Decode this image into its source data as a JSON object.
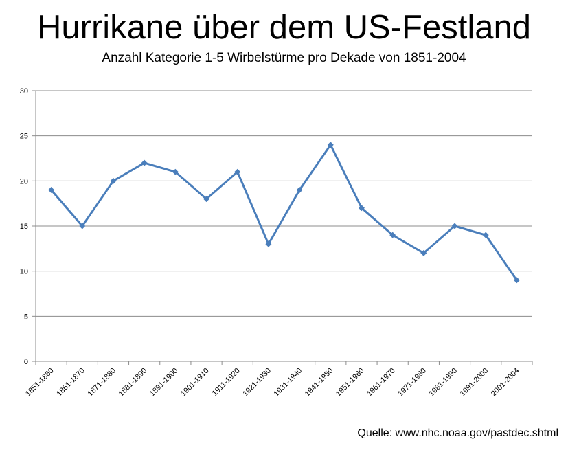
{
  "title": "Hurrikane über dem US-Festland",
  "subtitle": "Anzahl Kategorie 1-5 Wirbelstürme pro Dekade von 1851-2004",
  "source": "Quelle: www.nhc.noaa.gov/pastdec.shtml",
  "chart_data": {
    "type": "line",
    "title": "Hurrikane über dem US-Festland",
    "subtitle": "Anzahl Kategorie 1-5 Wirbelstürme pro Dekade von 1851-2004",
    "categories": [
      "1851-1860",
      "1861-1870",
      "1871-1880",
      "1881-1890",
      "1891-1900",
      "1901-1910",
      "1911-1920",
      "1921-1930",
      "1931-1940",
      "1941-1950",
      "1951-1960",
      "1961-1970",
      "1971-1980",
      "1981-1990",
      "1991-2000",
      "2001-2004"
    ],
    "values": [
      19,
      15,
      20,
      22,
      21,
      18,
      21,
      13,
      19,
      24,
      17,
      14,
      12,
      15,
      14,
      9
    ],
    "ylim": [
      0,
      30
    ],
    "yticks": [
      0,
      5,
      10,
      15,
      20,
      25,
      30
    ],
    "grid": true,
    "legend": "none",
    "series_color": "#4a7ebb"
  }
}
